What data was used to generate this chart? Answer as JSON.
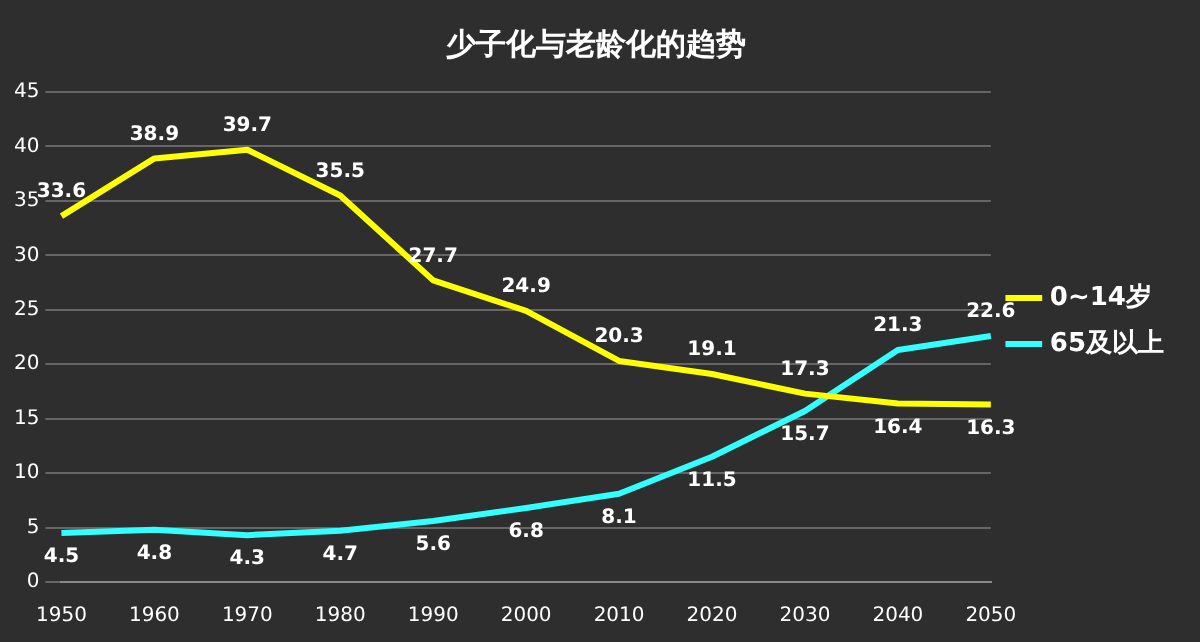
{
  "chart_data": {
    "type": "line",
    "title": "少子化与老龄化的趋势",
    "categories": [
      "1950",
      "1960",
      "1970",
      "1980",
      "1990",
      "2000",
      "2010",
      "2020",
      "2030",
      "2040",
      "2050"
    ],
    "series": [
      {
        "name": "0~14岁",
        "color": "#ffff00",
        "values": [
          33.6,
          38.9,
          39.7,
          35.5,
          27.7,
          24.9,
          20.3,
          19.1,
          17.3,
          16.4,
          16.3
        ]
      },
      {
        "name": "65及以上",
        "color": "#33ffff",
        "values": [
          4.5,
          4.8,
          4.3,
          4.7,
          5.6,
          6.8,
          8.1,
          11.5,
          15.7,
          21.3,
          22.6
        ]
      }
    ],
    "ylim": [
      0,
      45
    ],
    "yticks": [
      0,
      5,
      10,
      15,
      20,
      25,
      30,
      35,
      40,
      45
    ],
    "grid": "y",
    "legend": "right",
    "marker": "none",
    "line_style": "solid",
    "data_labels": true
  }
}
